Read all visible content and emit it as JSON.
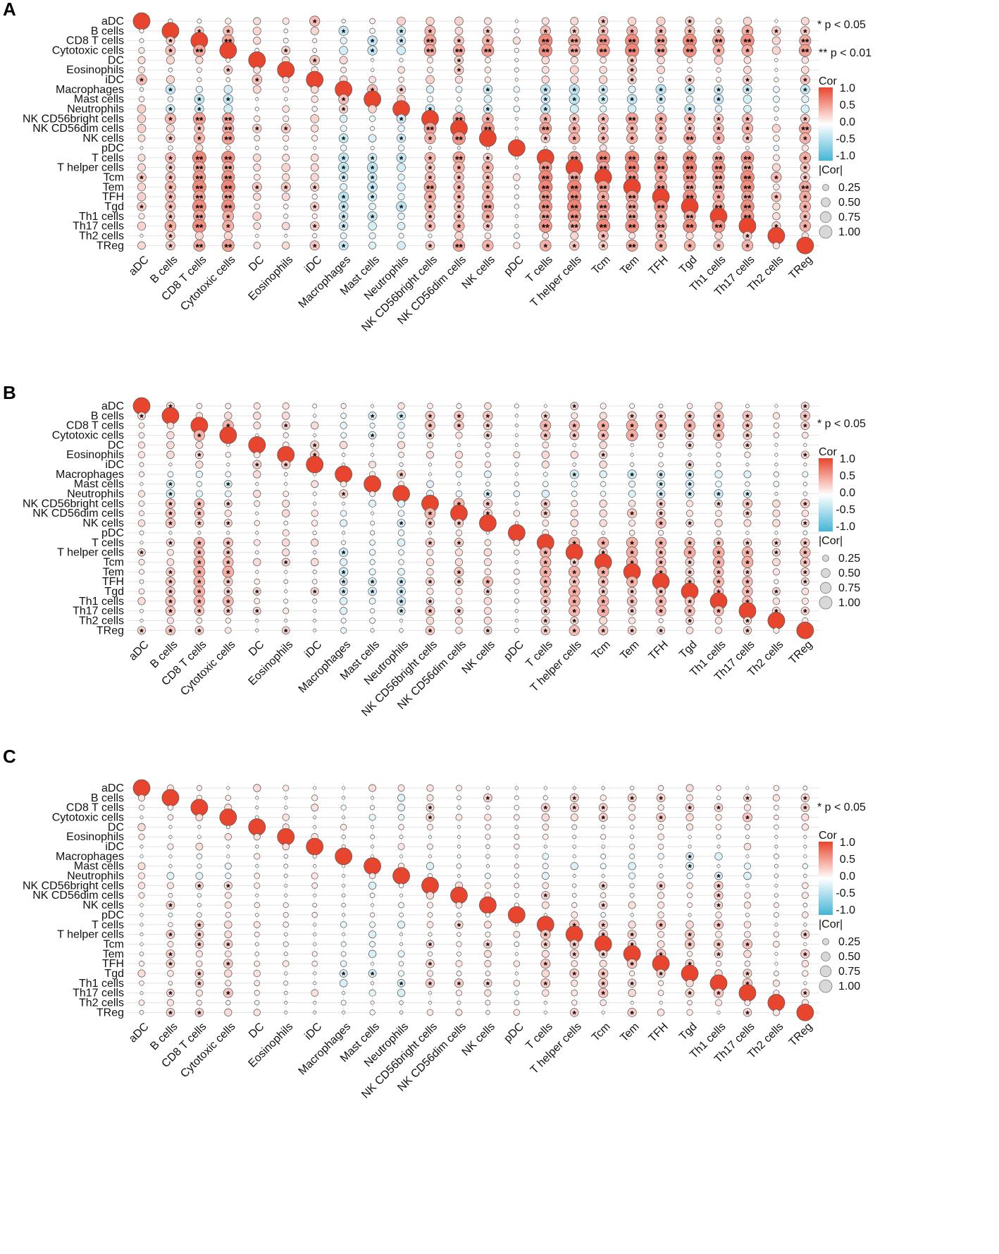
{
  "figure": {
    "panel_letters": [
      "A",
      "B",
      "C"
    ],
    "legend": {
      "sig_single": "* p < 0.05",
      "sig_double": "** p < 0.01",
      "cor_title": "Cor",
      "cor_ticks": [
        "1.0",
        "0.5",
        "0.0",
        "-0.5",
        "-1.0"
      ],
      "size_title": "|Cor|",
      "size_ticks": [
        "0.25",
        "0.50",
        "0.75",
        "1.00"
      ]
    },
    "colors": {
      "positive": "#E8452E",
      "neutral": "#FFFFFF",
      "negative": "#45B5D6",
      "grid": "#E3E3E3",
      "circle_stroke": "#555555"
    }
  },
  "chart_data": [
    {
      "type": "heatmap",
      "panel": "A",
      "title": "",
      "categories": [
        "aDC",
        "B cells",
        "CD8 T cells",
        "Cytotoxic cells",
        "DC",
        "Eosinophils",
        "iDC",
        "Macrophages",
        "Mast cells",
        "Neutrophils",
        "NK CD56bright cells",
        "NK CD56dim cells",
        "NK cells",
        "pDC",
        "T cells",
        "T helper cells",
        "Tcm",
        "Tem",
        "TFH",
        "Tgd",
        "Th1 cells",
        "Th17 cells",
        "Th2 cells",
        "TReg"
      ],
      "value_range": [
        -1,
        1
      ],
      "significance_levels": [
        "* p < 0.05",
        "** p < 0.01"
      ],
      "note": "Correlation matrix of 24 immune cell types (rows x columns, same order). Diagonal = 1.0. Lymphocyte block (CD8 T, Cytotoxic, NK, T cells, T helper, Tcm, Tem, TFH, Tgd, Th1, Th17) strongly positive; Macrophages, Mast cells, Neutrophils, DC mostly negative with T-cell subsets."
    },
    {
      "type": "heatmap",
      "panel": "B",
      "title": "",
      "categories": [
        "aDC",
        "B cells",
        "CD8 T cells",
        "Cytotoxic cells",
        "DC",
        "Eosinophils",
        "iDC",
        "Macrophages",
        "Mast cells",
        "Neutrophils",
        "NK CD56bright cells",
        "NK CD56dim cells",
        "NK cells",
        "pDC",
        "T cells",
        "T helper cells",
        "Tcm",
        "Tem",
        "TFH",
        "Tgd",
        "Th1 cells",
        "Th17 cells",
        "Th2 cells",
        "TReg"
      ],
      "value_range": [
        -1,
        1
      ],
      "significance_levels": [
        "* p < 0.05"
      ],
      "note": "Correlation matrix of the same 24 immune cell types; similar block structure with slightly weaker off-diagonal correlations."
    },
    {
      "type": "heatmap",
      "panel": "C",
      "title": "",
      "categories": [
        "aDC",
        "B cells",
        "CD8 T cells",
        "Cytotoxic cells",
        "DC",
        "Eosinophils",
        "iDC",
        "Macrophages",
        "Mast cells",
        "Neutrophils",
        "NK CD56bright cells",
        "NK CD56dim cells",
        "NK cells",
        "pDC",
        "T cells",
        "T helper cells",
        "Tcm",
        "Tem",
        "TFH",
        "Tgd",
        "Th1 cells",
        "Th17 cells",
        "Th2 cells",
        "TReg"
      ],
      "value_range": [
        -1,
        1
      ],
      "significance_levels": [
        "* p < 0.05"
      ],
      "note": "Correlation matrix of the same 24 immune cell types; weakest off-diagonal correlations, diagonal = 1.0."
    }
  ]
}
